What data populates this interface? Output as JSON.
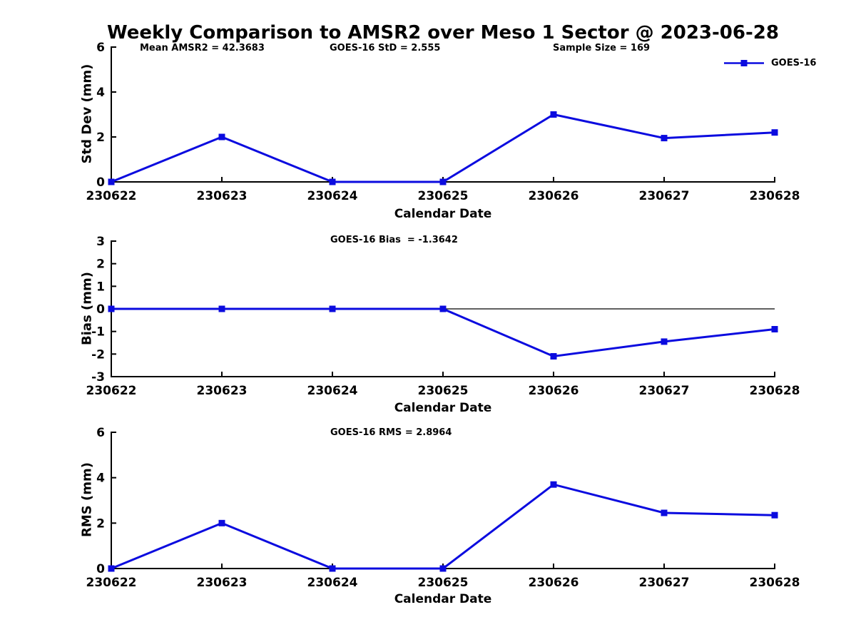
{
  "figure": {
    "title": "Weekly Comparison to AMSR2 over Meso 1 Sector @ 2023-06-28",
    "background_color": "#ffffff",
    "line_color": "#0b0bdf",
    "axis_color": "#000000"
  },
  "legend": {
    "label": "GOES-16",
    "position": "top-right",
    "marker": "square"
  },
  "chart_data": [
    {
      "id": "std-dev",
      "type": "line",
      "categories": [
        "230622",
        "230623",
        "230624",
        "230625",
        "230626",
        "230627",
        "230628"
      ],
      "series": [
        {
          "name": "GOES-16",
          "values": [
            0,
            2.0,
            0,
            0,
            3.0,
            1.95,
            2.2
          ]
        }
      ],
      "xlabel": "Calendar Date",
      "ylabel": "Std Dev (mm)",
      "ylim": [
        0,
        6
      ],
      "yticks": [
        0,
        2,
        4,
        6
      ],
      "grid": false,
      "zero_line": false,
      "marker": "square",
      "annotations": [
        "Mean AMSR2 = 42.3683",
        "GOES-16 StD = 2.555",
        "Sample Size = 169"
      ]
    },
    {
      "id": "bias",
      "type": "line",
      "categories": [
        "230622",
        "230623",
        "230624",
        "230625",
        "230626",
        "230627",
        "230628"
      ],
      "series": [
        {
          "name": "GOES-16",
          "values": [
            0,
            0,
            0,
            0,
            -2.1,
            -1.45,
            -0.9
          ]
        }
      ],
      "xlabel": "Calendar Date",
      "ylabel": "Bias (mm)",
      "ylim": [
        -3,
        3
      ],
      "yticks": [
        3,
        2,
        1,
        0,
        -1,
        -2,
        -3
      ],
      "grid": false,
      "zero_line": true,
      "marker": "square",
      "annotations": [
        "GOES-16 Bias  = -1.3642"
      ]
    },
    {
      "id": "rms",
      "type": "line",
      "categories": [
        "230622",
        "230623",
        "230624",
        "230625",
        "230626",
        "230627",
        "230628"
      ],
      "series": [
        {
          "name": "GOES-16",
          "values": [
            0,
            2.0,
            0,
            0,
            3.7,
            2.45,
            2.35
          ]
        }
      ],
      "xlabel": "Calendar Date",
      "ylabel": "RMS (mm)",
      "ylim": [
        0,
        6
      ],
      "yticks": [
        0,
        2,
        4,
        6
      ],
      "grid": false,
      "zero_line": false,
      "marker": "square",
      "annotations": [
        "GOES-16 RMS = 2.8964"
      ]
    }
  ]
}
